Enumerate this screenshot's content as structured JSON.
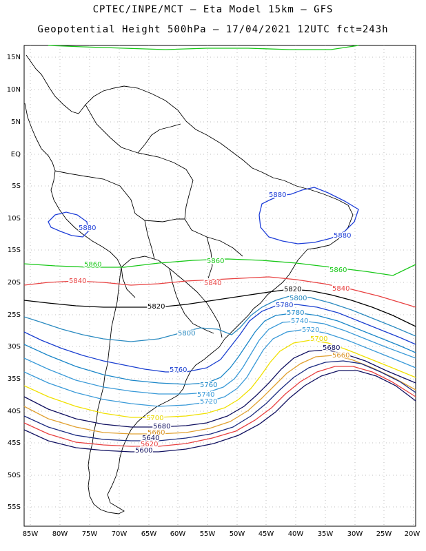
{
  "header": {
    "title_line1": "CPTEC/INPE/MCT –  Eta Model 15km – GFS",
    "title_line2": "Geopotential Height 500hPa – 17/04/2021 12UTC fct=243h"
  },
  "map": {
    "lat_ticks": [
      "15N",
      "10N",
      "5N",
      "EQ",
      "5S",
      "10S",
      "15S",
      "20S",
      "25S",
      "30S",
      "35S",
      "40S",
      "45S",
      "50S",
      "55S"
    ],
    "lon_ticks": [
      "85W",
      "80W",
      "75W",
      "70W",
      "65W",
      "60W",
      "55W",
      "50W",
      "45W",
      "40W",
      "35W",
      "30W",
      "25W",
      "20W"
    ],
    "contour_levels": [
      {
        "value": "5880",
        "color": "#1f3fd8"
      },
      {
        "value": "5860",
        "color": "#18c818"
      },
      {
        "value": "5840",
        "color": "#e84040"
      },
      {
        "value": "5820",
        "color": "#000000"
      },
      {
        "value": "5800",
        "color": "#3aa0d8"
      },
      {
        "value": "5780",
        "color": "#1a3fd0"
      },
      {
        "value": "5760",
        "color": "#1a86c8"
      },
      {
        "value": "5740",
        "color": "#3a9ad8"
      },
      {
        "value": "5720",
        "color": "#3a9ad8"
      },
      {
        "value": "5700",
        "color": "#f0e000"
      },
      {
        "value": "5680",
        "color": "#101060"
      },
      {
        "value": "5660",
        "color": "#e0a030"
      }
    ],
    "labels": [
      {
        "text": "5880",
        "color": "#1f3fd8"
      },
      {
        "text": "5880",
        "color": "#1f3fd8"
      },
      {
        "text": "5880",
        "color": "#1f3fd8"
      },
      {
        "text": "5860",
        "color": "#18c818"
      },
      {
        "text": "5860",
        "color": "#18c818"
      },
      {
        "text": "5860",
        "color": "#18c818"
      },
      {
        "text": "5840",
        "color": "#e84040"
      },
      {
        "text": "5840",
        "color": "#e84040"
      },
      {
        "text": "5840",
        "color": "#e84040"
      },
      {
        "text": "5820",
        "color": "#000000"
      },
      {
        "text": "5820",
        "color": "#000000"
      },
      {
        "text": "5800",
        "color": "#2a8ac0"
      },
      {
        "text": "5800",
        "color": "#2a8ac0"
      },
      {
        "text": "5780",
        "color": "#1a3fd0"
      },
      {
        "text": "5780",
        "color": "#1a86c8"
      },
      {
        "text": "5760",
        "color": "#1a3fd0"
      },
      {
        "text": "5760",
        "color": "#1a86c8"
      },
      {
        "text": "5740",
        "color": "#3a9ad8"
      },
      {
        "text": "5740",
        "color": "#3a9ad8"
      },
      {
        "text": "5720",
        "color": "#3a9ad8"
      },
      {
        "text": "5720",
        "color": "#3a9ad8"
      },
      {
        "text": "5700",
        "color": "#e8d800"
      },
      {
        "text": "5700",
        "color": "#e8d800"
      },
      {
        "text": "5680",
        "color": "#101060"
      },
      {
        "text": "5680",
        "color": "#101060"
      },
      {
        "text": "5660",
        "color": "#d89020"
      },
      {
        "text": "5660",
        "color": "#d89020"
      },
      {
        "text": "5640",
        "color": "#101060"
      },
      {
        "text": "5620",
        "color": "#e84040"
      },
      {
        "text": "5600",
        "color": "#101060"
      }
    ]
  }
}
